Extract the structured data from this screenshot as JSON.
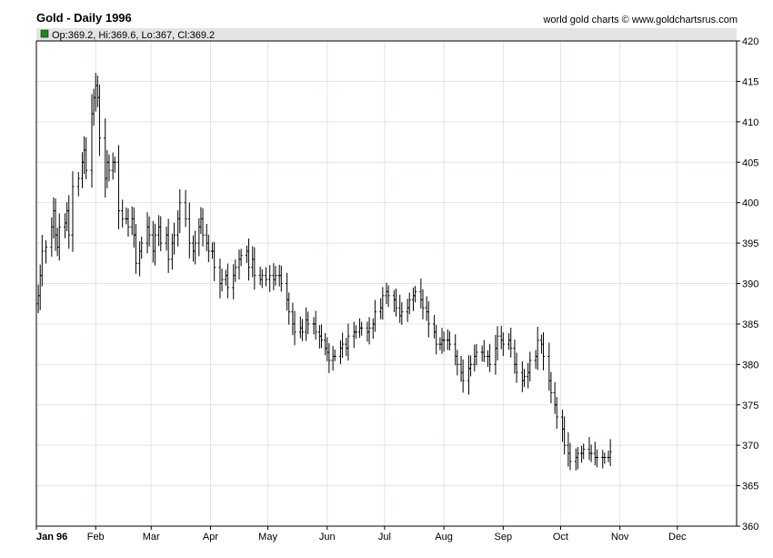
{
  "header": {
    "title": "Gold - Daily 1996",
    "credit": "world gold charts © www.goldchartsrus.com",
    "ohlc_label": "Op:369.2, Hi:369.6, Lo:367, Cl:369.2",
    "ohlc_swatch_color": "#1a8a1a"
  },
  "chart_data": {
    "type": "ohlc",
    "title": "Gold - Daily 1996",
    "xlabel": "",
    "ylabel": "",
    "ylim": [
      360,
      420
    ],
    "yticks": [
      360,
      365,
      370,
      375,
      380,
      385,
      390,
      395,
      400,
      405,
      410,
      415,
      420
    ],
    "grid": true,
    "months": [
      {
        "label": "Jan 96",
        "day": 0
      },
      {
        "label": "Feb",
        "day": 31
      },
      {
        "label": "Mar",
        "day": 60
      },
      {
        "label": "Apr",
        "day": 91
      },
      {
        "label": "May",
        "day": 121
      },
      {
        "label": "Jun",
        "day": 152
      },
      {
        "label": "Jul",
        "day": 182
      },
      {
        "label": "Aug",
        "day": 213
      },
      {
        "label": "Sep",
        "day": 244
      },
      {
        "label": "Oct",
        "day": 274
      },
      {
        "label": "Nov",
        "day": 305
      },
      {
        "label": "Dec",
        "day": 335
      }
    ],
    "last_bar": {
      "open": 369.2,
      "high": 369.6,
      "low": 367,
      "close": 369.2
    },
    "close_path": [
      [
        1,
        388.5
      ],
      [
        2,
        391
      ],
      [
        3,
        394
      ],
      [
        5,
        394.5
      ],
      [
        8,
        397
      ],
      [
        9,
        399
      ],
      [
        10,
        396
      ],
      [
        11,
        394.5
      ],
      [
        12,
        397
      ],
      [
        15,
        397.5
      ],
      [
        16,
        399
      ],
      [
        17,
        396
      ],
      [
        19,
        402
      ],
      [
        22,
        403
      ],
      [
        24,
        405
      ],
      [
        25,
        406.5
      ],
      [
        26,
        404
      ],
      [
        29,
        411
      ],
      [
        30,
        413
      ],
      [
        31,
        414.5
      ],
      [
        32,
        413
      ],
      [
        33,
        408
      ],
      [
        36,
        403
      ],
      [
        37,
        405
      ],
      [
        38,
        404
      ],
      [
        40,
        405
      ],
      [
        41,
        405
      ],
      [
        43,
        399
      ],
      [
        45,
        398
      ],
      [
        47,
        398
      ],
      [
        48,
        397
      ],
      [
        50,
        398
      ],
      [
        51,
        396
      ],
      [
        52,
        392.5
      ],
      [
        54,
        394
      ],
      [
        55,
        395
      ],
      [
        58,
        397
      ],
      [
        59,
        396
      ],
      [
        61,
        394
      ],
      [
        62,
        396
      ],
      [
        64,
        397
      ],
      [
        65,
        395
      ],
      [
        68,
        396
      ],
      [
        69,
        393
      ],
      [
        71,
        395
      ],
      [
        72,
        396
      ],
      [
        74,
        398
      ],
      [
        75,
        400
      ],
      [
        78,
        398
      ],
      [
        80,
        395
      ],
      [
        82,
        394
      ],
      [
        83,
        395
      ],
      [
        85,
        397
      ],
      [
        86,
        398
      ],
      [
        87,
        396
      ],
      [
        89,
        395
      ],
      [
        90,
        394
      ],
      [
        92,
        394
      ],
      [
        93,
        392
      ],
      [
        96,
        390
      ],
      [
        97,
        390.5
      ],
      [
        99,
        391
      ],
      [
        100,
        389.5
      ],
      [
        103,
        391
      ],
      [
        104,
        392
      ],
      [
        106,
        393
      ],
      [
        107,
        393.5
      ],
      [
        110,
        394
      ],
      [
        111,
        392
      ],
      [
        113,
        393
      ],
      [
        114,
        391
      ],
      [
        117,
        390.5
      ],
      [
        118,
        391
      ],
      [
        120,
        390.5
      ],
      [
        122,
        391
      ],
      [
        124,
        390.5
      ],
      [
        125,
        391
      ],
      [
        127,
        391
      ],
      [
        128,
        390
      ],
      [
        131,
        388
      ],
      [
        132,
        386.5
      ],
      [
        134,
        385
      ],
      [
        135,
        384
      ],
      [
        138,
        384.5
      ],
      [
        139,
        384
      ],
      [
        141,
        385.5
      ],
      [
        142,
        385
      ],
      [
        145,
        385
      ],
      [
        146,
        384
      ],
      [
        148,
        383.5
      ],
      [
        149,
        383
      ],
      [
        151,
        382
      ],
      [
        152,
        381.5
      ],
      [
        153,
        380.5
      ],
      [
        155,
        381
      ],
      [
        156,
        381
      ],
      [
        159,
        382
      ],
      [
        160,
        382.5
      ],
      [
        162,
        382
      ],
      [
        163,
        383.5
      ],
      [
        166,
        384
      ],
      [
        167,
        384
      ],
      [
        169,
        384.5
      ],
      [
        170,
        384.5
      ],
      [
        173,
        384
      ],
      [
        174,
        384.5
      ],
      [
        176,
        385
      ],
      [
        177,
        386.5
      ],
      [
        180,
        387
      ],
      [
        181,
        388.5
      ],
      [
        183,
        389
      ],
      [
        184,
        388.5
      ],
      [
        187,
        388
      ],
      [
        188,
        387
      ],
      [
        190,
        386
      ],
      [
        191,
        386.5
      ],
      [
        194,
        387
      ],
      [
        195,
        388
      ],
      [
        197,
        388.5
      ],
      [
        198,
        389
      ],
      [
        201,
        388
      ],
      [
        202,
        387
      ],
      [
        204,
        386.5
      ],
      [
        205,
        385
      ],
      [
        208,
        384
      ],
      [
        209,
        382.5
      ],
      [
        211,
        382.5
      ],
      [
        212,
        383
      ],
      [
        213,
        383
      ],
      [
        215,
        383
      ],
      [
        216,
        382.5
      ],
      [
        219,
        381
      ],
      [
        220,
        380
      ],
      [
        222,
        379
      ],
      [
        223,
        378
      ],
      [
        226,
        379.5
      ],
      [
        227,
        380
      ],
      [
        229,
        381
      ],
      [
        230,
        381.5
      ],
      [
        233,
        381.5
      ],
      [
        234,
        381
      ],
      [
        236,
        381
      ],
      [
        237,
        380
      ],
      [
        240,
        382
      ],
      [
        241,
        383.5
      ],
      [
        243,
        383
      ],
      [
        244,
        382.5
      ],
      [
        247,
        383
      ],
      [
        248,
        382
      ],
      [
        250,
        380
      ],
      [
        251,
        379
      ],
      [
        254,
        378
      ],
      [
        255,
        378.5
      ],
      [
        257,
        379
      ],
      [
        258,
        380.5
      ],
      [
        261,
        381
      ],
      [
        262,
        383
      ],
      [
        264,
        382.5
      ],
      [
        265,
        381
      ],
      [
        268,
        378
      ],
      [
        269,
        376.5
      ],
      [
        271,
        375
      ],
      [
        272,
        373.5
      ],
      [
        275,
        372
      ],
      [
        276,
        370
      ],
      [
        278,
        369
      ],
      [
        279,
        368
      ],
      [
        282,
        368.5
      ],
      [
        283,
        369
      ],
      [
        285,
        369
      ],
      [
        286,
        369.5
      ],
      [
        289,
        369
      ],
      [
        290,
        369
      ],
      [
        292,
        368.5
      ],
      [
        293,
        368.5
      ],
      [
        296,
        368.5
      ],
      [
        297,
        368.5
      ],
      [
        299,
        368.5
      ],
      [
        300,
        369.2
      ]
    ]
  }
}
